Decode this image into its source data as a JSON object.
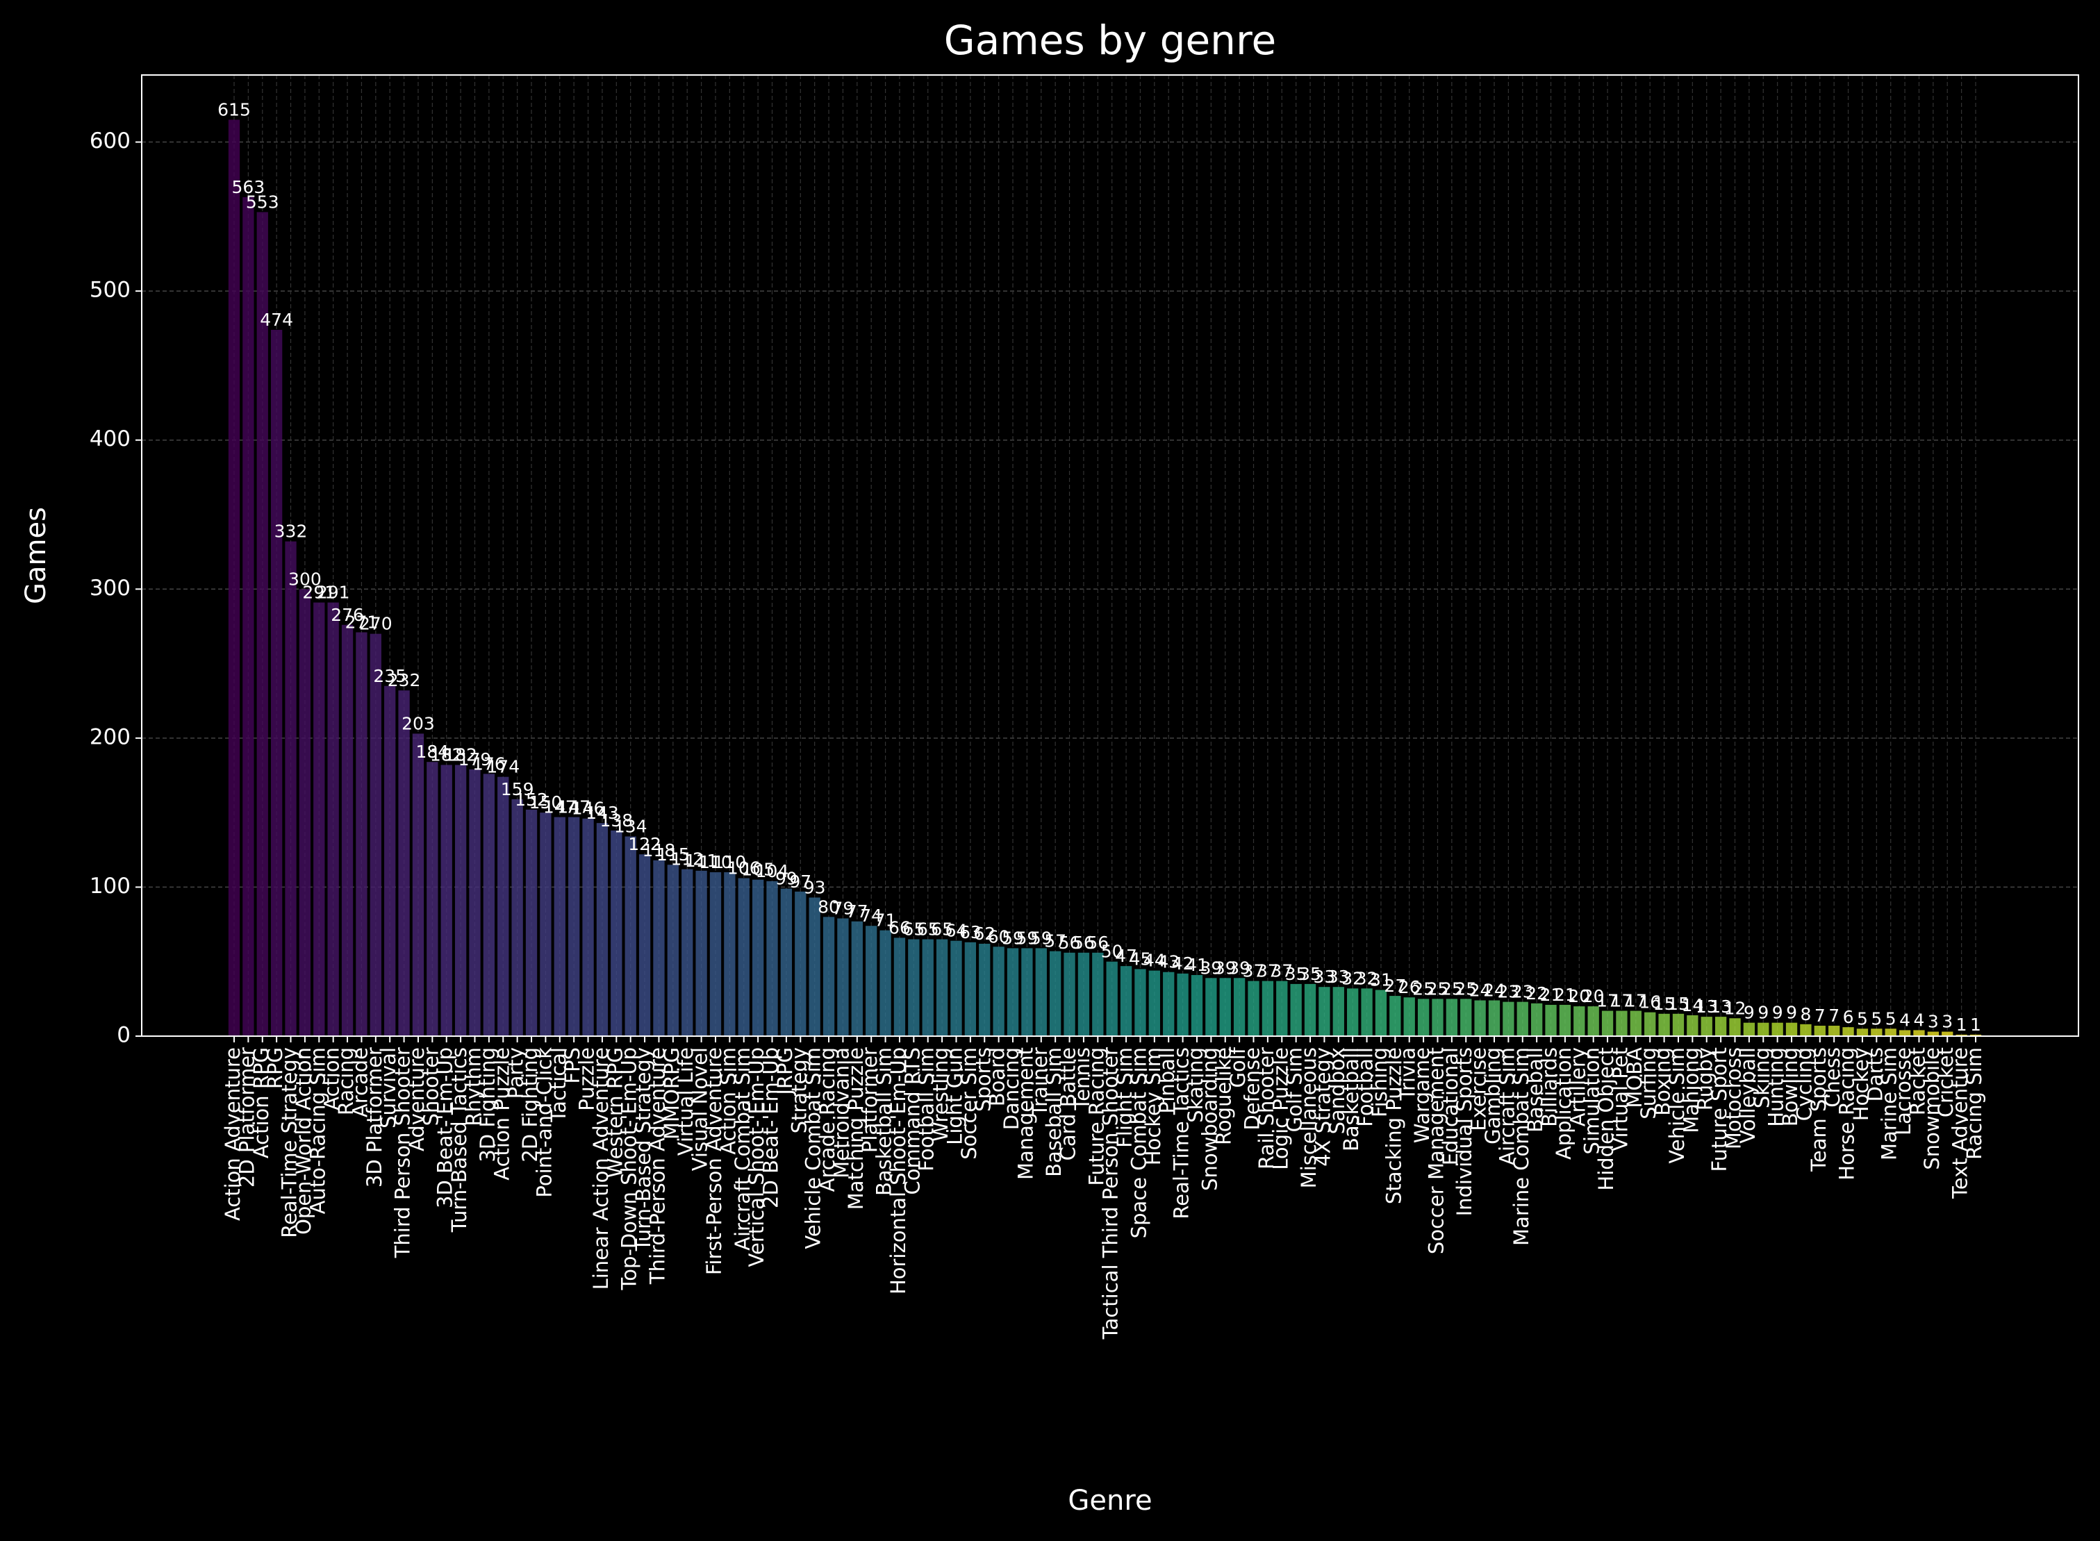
{
  "chart_data": {
    "type": "bar",
    "title": "Games by genre",
    "x_label": "Genre",
    "y_label": "Games",
    "colormap": "viridis",
    "grid": true,
    "ylim": [
      0,
      645
    ],
    "yticks": [
      0,
      100,
      200,
      300,
      400,
      500,
      600
    ],
    "categories": [
      "Action Adventure",
      "2D Platformer",
      "Action RPG",
      "RPG",
      "Real-Time Strategy",
      "Open-World Action",
      "Auto-Racing Sim",
      "Action",
      "Racing",
      "Arcade",
      "3D Platformer",
      "Survival",
      "Third Person Shooter",
      "Adventure",
      "Shooter",
      "3D Beat-'Em-Up",
      "Turn-Based Tactics",
      "Rhythm",
      "3D Fighting",
      "Action Puzzle",
      "Party",
      "2D Fighting",
      "Point-and-Click",
      "Tactical",
      "FPS",
      "Puzzle",
      "Linear Action Adventure",
      "Western RPG",
      "Top-Down Shoot-'Em-Up",
      "Turn-Based Strategy",
      "Third-Person Adventure",
      "MMORPG",
      "Virtual Life",
      "Visual Novel",
      "First-Person Adventure",
      "Action Sim",
      "Aircraft Combat Sim",
      "Vertical Shoot-'Em-Up",
      "2D Beat-'Em-Up",
      "JRPG",
      "Strategy",
      "Vehicle Combat Sim",
      "Arcade Racing",
      "Metroidvania",
      "Matching Puzzle",
      "Platformer",
      "Basketball Sim",
      "Horizontal Shoot-'Em-Up",
      "Command RTS",
      "Football Sim",
      "Wrestling",
      "Light Gun",
      "Soccer Sim",
      "Sports",
      "Board",
      "Dancing",
      "Management",
      "Trainer",
      "Baseball Sim",
      "Card Battle",
      "Tennis",
      "Future Racing",
      "Tactical Third Person Shooter",
      "Flight Sim",
      "Space Combat Sim",
      "Hockey Sim",
      "Pinball",
      "Real-Time Tactics",
      "Skating",
      "Snowboarding",
      "Roguelike",
      "Golf",
      "Defense",
      "Rail Shooter",
      "Logic Puzzle",
      "Golf Sim",
      "Miscellaneous",
      "4X Strategy",
      "Sandbox",
      "Basketball",
      "Football",
      "Fishing",
      "Stacking Puzzle",
      "Trivia",
      "Wargame",
      "Soccer Management",
      "Educational",
      "Individual Sports",
      "Exercise",
      "Gambling",
      "Aircraft Sim",
      "Marine Combat Sim",
      "Baseball",
      "Billiards",
      "Application",
      "Artillery",
      "Simulation",
      "Hidden Object",
      "Virtual Pet",
      "MOBA",
      "Surfing",
      "Boxing",
      "Vehicle Sim",
      "Mahjong",
      "Rugby",
      "Future Sport",
      "Motocross",
      "Volleyball",
      "Skiing",
      "Hunting",
      "Bowling",
      "Cycling",
      "Team Sports",
      "Chess",
      "Horse Racing",
      "Hockey",
      "Darts",
      "Marine Sim",
      "Lacrosse",
      "Racket",
      "Snowmobile",
      "Cricket",
      "Text Adventure",
      "Racing Sim"
    ],
    "values": [
      615,
      563,
      553,
      474,
      332,
      300,
      291,
      291,
      276,
      271,
      270,
      235,
      232,
      203,
      184,
      182,
      182,
      179,
      176,
      174,
      159,
      152,
      150,
      147,
      147,
      146,
      143,
      138,
      134,
      122,
      118,
      115,
      112,
      111,
      110,
      110,
      106,
      105,
      104,
      99,
      97,
      93,
      80,
      79,
      77,
      74,
      71,
      66,
      65,
      65,
      65,
      64,
      63,
      62,
      60,
      59,
      59,
      59,
      57,
      56,
      56,
      56,
      50,
      47,
      45,
      44,
      43,
      42,
      41,
      39,
      39,
      39,
      37,
      37,
      37,
      35,
      35,
      33,
      33,
      32,
      32,
      31,
      27,
      26,
      25,
      25,
      25,
      25,
      24,
      24,
      23,
      23,
      22,
      21,
      21,
      20,
      20,
      17,
      17,
      17,
      16,
      15,
      15,
      14,
      13,
      13,
      12,
      9,
      9,
      9,
      9,
      8,
      7,
      7,
      6,
      5,
      5,
      5,
      4,
      4,
      3,
      3,
      1,
      1
    ]
  }
}
